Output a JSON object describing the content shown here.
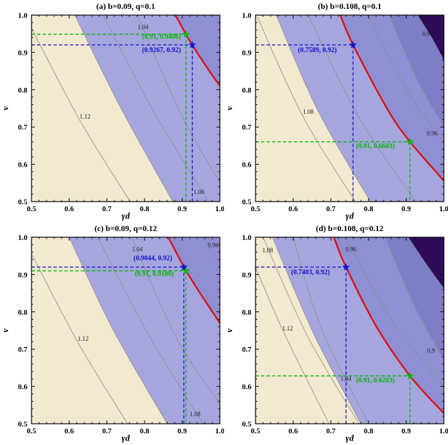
{
  "colors": {
    "cream": "#f3e8d0",
    "band1": "#a6a6df",
    "band2": "#8f8fd4",
    "band3": "#7d7dc8",
    "corner": "#2d0b59",
    "red": "#dd1010",
    "blue": "#1212cc",
    "green": "#00b800",
    "gray": "#8a8a8a",
    "frame": "#000000"
  },
  "chart_data": [
    {
      "type": "heatmap",
      "subtype": "filled-contour",
      "panel_id": "a",
      "title": "(a) b=0.09, q=0.1",
      "xlabel": "γd",
      "ylabel": "ν",
      "xlim": [
        0.5,
        1.0
      ],
      "ylim": [
        0.5,
        1.0
      ],
      "xticks": [
        "0.5",
        "0.6",
        "0.7",
        "0.8",
        "0.9",
        "1.0"
      ],
      "yticks": [
        "0.5",
        "0.6",
        "0.7",
        "0.8",
        "0.9",
        "1.0"
      ],
      "bands": [
        {
          "color": "#f3e8d0",
          "boundary": null
        },
        {
          "color": "#a6a6df",
          "boundary": [
            [
              0.615,
              1.0
            ],
            [
              0.735,
              0.755
            ],
            [
              0.875,
              0.5
            ]
          ]
        },
        {
          "color": "#8f8fd4",
          "boundary": "red"
        }
      ],
      "red_curve": [
        [
          0.882,
          1.0
        ],
        [
          0.91,
          0.9486
        ],
        [
          0.9267,
          0.92
        ],
        [
          0.962,
          0.865
        ],
        [
          1.0,
          0.81
        ]
      ],
      "contour_lines": [
        {
          "points": [
            [
              0.615,
              1.0
            ],
            [
              0.735,
              0.755
            ],
            [
              0.875,
              0.5
            ]
          ]
        },
        {
          "points": [
            [
              0.5,
              0.965
            ],
            [
              0.63,
              0.715
            ],
            [
              0.762,
              0.5
            ]
          ],
          "label": "1.12",
          "label_pos": [
            0.642,
            0.722
          ]
        },
        {
          "points": [
            [
              0.69,
              1.0
            ],
            [
              0.825,
              0.74
            ],
            [
              0.97,
              0.5
            ]
          ],
          "label": "1.08",
          "label_pos": [
            0.944,
            0.52
          ]
        },
        {
          "points": [
            [
              0.78,
              1.0
            ],
            [
              0.9,
              0.728
            ],
            [
              1.0,
              0.552
            ]
          ],
          "label": "1.04",
          "label_pos": [
            0.796,
            0.962
          ]
        }
      ],
      "blue_marker": {
        "x": 0.9267,
        "y": 0.92,
        "label": "(0.9267, 0.92)",
        "label_pos": [
          0.845,
          0.901
        ]
      },
      "green_marker": {
        "x": 0.91,
        "y": 0.9486,
        "label": "(0.91, 0.9486)",
        "label_pos": [
          0.845,
          0.9365
        ]
      }
    },
    {
      "type": "heatmap",
      "subtype": "filled-contour",
      "panel_id": "b",
      "title": "(b) b=0.108, q=0.1",
      "xlabel": "γd",
      "ylabel": "ν",
      "xlim": [
        0.5,
        1.0
      ],
      "ylim": [
        0.5,
        1.0
      ],
      "xticks": [
        "0.5",
        "0.6",
        "0.7",
        "0.8",
        "0.9",
        "1.0"
      ],
      "yticks": [
        "0.5",
        "0.6",
        "0.7",
        "0.8",
        "0.9",
        "1.0"
      ],
      "bands": [
        {
          "color": "#f3e8d0",
          "boundary": null
        },
        {
          "color": "#a6a6df",
          "boundary": [
            [
              0.555,
              1.0
            ],
            [
              0.665,
              0.745
            ],
            [
              0.805,
              0.5
            ]
          ]
        },
        {
          "color": "#8f8fd4",
          "boundary": "red"
        },
        {
          "color": "#7d7dc8",
          "boundary": [
            [
              0.855,
              1.0
            ],
            [
              0.928,
              0.83
            ],
            [
              1.0,
              0.7
            ]
          ]
        },
        {
          "color": "#2d0b59",
          "boundary": [
            [
              0.93,
              1.0
            ],
            [
              0.97,
              0.935
            ],
            [
              1.0,
              0.878
            ]
          ]
        }
      ],
      "red_curve": [
        [
          0.725,
          1.0
        ],
        [
          0.7589,
          0.92
        ],
        [
          0.85,
          0.748
        ],
        [
          0.91,
          0.6603
        ],
        [
          1.0,
          0.556
        ]
      ],
      "contour_lines": [
        {
          "points": [
            [
              0.555,
              1.0
            ],
            [
              0.665,
              0.745
            ],
            [
              0.805,
              0.5
            ]
          ]
        },
        {
          "points": [
            [
              0.505,
              0.995
            ],
            [
              0.625,
              0.73
            ],
            [
              0.765,
              0.5
            ]
          ],
          "label": "1.08",
          "label_pos": [
            0.64,
            0.735
          ]
        },
        {
          "points": [
            [
              0.64,
              1.0
            ],
            [
              0.772,
              0.73
            ],
            [
              0.925,
              0.5
            ]
          ]
        },
        {
          "points": [
            [
              0.8,
              1.0
            ],
            [
              0.895,
              0.81
            ],
            [
              1.0,
              0.655
            ]
          ],
          "label": "0.96",
          "label_pos": [
            0.969,
            0.677
          ]
        },
        {
          "points": [
            [
              0.855,
              1.0
            ],
            [
              0.928,
              0.83
            ],
            [
              1.0,
              0.7
            ]
          ]
        },
        {
          "points": [
            [
              0.93,
              1.0
            ],
            [
              0.97,
              0.935
            ],
            [
              1.0,
              0.878
            ]
          ],
          "label": "0.9",
          "label_pos": [
            0.953,
            0.944
          ]
        }
      ],
      "blue_marker": {
        "x": 0.7589,
        "y": 0.92,
        "label": "(0.7589, 0.92)",
        "label_pos": [
          0.664,
          0.901
        ]
      },
      "green_marker": {
        "x": 0.91,
        "y": 0.6603,
        "label": "(0.91, 0.6603)",
        "label_pos": [
          0.818,
          0.6435
        ]
      }
    },
    {
      "type": "heatmap",
      "subtype": "filled-contour",
      "panel_id": "c",
      "title": "(c) b=0.09, q=0.12",
      "xlabel": "γd",
      "ylabel": "ν",
      "xlim": [
        0.5,
        1.0
      ],
      "ylim": [
        0.5,
        1.0
      ],
      "xticks": [
        "0.5",
        "0.6",
        "0.7",
        "0.8",
        "0.9",
        "1.0"
      ],
      "yticks": [
        "0.5",
        "0.6",
        "0.7",
        "0.8",
        "0.9",
        "1.0"
      ],
      "bands": [
        {
          "color": "#f3e8d0",
          "boundary": null
        },
        {
          "color": "#a6a6df",
          "boundary": [
            [
              0.6,
              1.0
            ],
            [
              0.715,
              0.755
            ],
            [
              0.86,
              0.5
            ]
          ]
        },
        {
          "color": "#8f8fd4",
          "boundary": "red"
        }
      ],
      "red_curve": [
        [
          0.863,
          1.0
        ],
        [
          0.9044,
          0.92
        ],
        [
          0.91,
          0.91
        ],
        [
          0.952,
          0.843
        ],
        [
          1.0,
          0.77
        ]
      ],
      "contour_lines": [
        {
          "points": [
            [
              0.6,
              1.0
            ],
            [
              0.715,
              0.755
            ],
            [
              0.86,
              0.5
            ]
          ]
        },
        {
          "points": [
            [
              0.5,
              0.955
            ],
            [
              0.625,
              0.715
            ],
            [
              0.755,
              0.5
            ]
          ],
          "label": "1.12",
          "label_pos": [
            0.637,
            0.722
          ]
        },
        {
          "points": [
            [
              0.675,
              1.0
            ],
            [
              0.81,
              0.74
            ],
            [
              0.955,
              0.5
            ]
          ],
          "label": "1.08",
          "label_pos": [
            0.934,
            0.52
          ]
        },
        {
          "points": [
            [
              0.765,
              1.0
            ],
            [
              0.885,
              0.73
            ],
            [
              1.0,
              0.553
            ]
          ],
          "label": "1.04",
          "label_pos": [
            0.781,
            0.962
          ]
        },
        {
          "points": [
            [
              0.955,
              1.0
            ],
            [
              0.978,
              0.965
            ],
            [
              1.0,
              0.932
            ]
          ],
          "label": "0.96",
          "label_pos": [
            0.982,
            0.973
          ]
        }
      ],
      "blue_marker": {
        "x": 0.9044,
        "y": 0.92,
        "label": "(0.9044, 0.92)",
        "label_pos": [
          0.822,
          0.9385
        ]
      },
      "green_marker": {
        "x": 0.91,
        "y": 0.91,
        "label": "(0.91, 0.9100)",
        "label_pos": [
          0.826,
          0.8965
        ]
      }
    },
    {
      "type": "heatmap",
      "subtype": "filled-contour",
      "panel_id": "d",
      "title": "(d) b=0.108, q=0.12",
      "xlabel": "γd",
      "ylabel": "ν",
      "xlim": [
        0.5,
        1.0
      ],
      "ylim": [
        0.5,
        1.0
      ],
      "xticks": [
        "0.5",
        "0.6",
        "0.7",
        "0.8",
        "0.9",
        "1.0"
      ],
      "yticks": [
        "0.5",
        "0.6",
        "0.7",
        "0.8",
        "0.9",
        "1.0"
      ],
      "bands": [
        {
          "color": "#f3e8d0",
          "boundary": null
        },
        {
          "color": "#a6a6df",
          "boundary": [
            [
              0.545,
              1.0
            ],
            [
              0.655,
              0.74
            ],
            [
              0.78,
              0.5
            ]
          ]
        },
        {
          "color": "#8f8fd4",
          "boundary": "red"
        },
        {
          "color": "#7d7dc8",
          "boundary": [
            [
              0.845,
              1.0
            ],
            [
              0.92,
              0.82
            ],
            [
              1.0,
              0.672
            ]
          ]
        },
        {
          "color": "#2d0b59",
          "boundary": [
            [
              0.905,
              1.0
            ],
            [
              0.953,
              0.928
            ],
            [
              1.0,
              0.862
            ]
          ]
        }
      ],
      "red_curve": [
        [
          0.708,
          1.0
        ],
        [
          0.7403,
          0.92
        ],
        [
          0.82,
          0.762
        ],
        [
          0.91,
          0.6283
        ],
        [
          1.0,
          0.528
        ]
      ],
      "contour_lines": [
        {
          "points": [
            [
              0.545,
              1.0
            ],
            [
              0.655,
              0.74
            ],
            [
              0.78,
              0.5
            ]
          ]
        },
        {
          "points": [
            [
              0.5,
              0.92
            ],
            [
              0.575,
              0.745
            ],
            [
              0.695,
              0.5
            ]
          ],
          "label": "1.12",
          "label_pos": [
            0.585,
            0.75
          ]
        },
        {
          "points": [
            [
              0.52,
              1.0
            ],
            [
              0.638,
              0.735
            ],
            [
              0.775,
              0.5
            ]
          ],
          "label": "1.08",
          "label_pos": [
            0.532,
            0.96
          ]
        },
        {
          "points": [
            [
              0.6,
              1.0
            ],
            [
              0.675,
              0.755
            ],
            [
              0.8,
              0.5
            ]
          ],
          "label": "1.04",
          "label_pos": [
            0.74,
            0.615
          ]
        },
        {
          "points": [
            [
              0.74,
              1.0
            ],
            [
              0.86,
              0.78
            ],
            [
              1.0,
              0.6
            ]
          ],
          "label": "0.96",
          "label_pos": [
            0.753,
            0.962
          ]
        },
        {
          "points": [
            [
              0.845,
              1.0
            ],
            [
              0.92,
              0.82
            ],
            [
              1.0,
              0.672
            ]
          ],
          "label": "0.9",
          "label_pos": [
            0.966,
            0.69
          ]
        },
        {
          "points": [
            [
              0.905,
              1.0
            ],
            [
              0.953,
              0.928
            ],
            [
              1.0,
              0.862
            ]
          ]
        }
      ],
      "blue_marker": {
        "x": 0.7403,
        "y": 0.92,
        "label": "(0.7403, 0.92)",
        "label_pos": [
          0.646,
          0.901
        ]
      },
      "green_marker": {
        "x": 0.91,
        "y": 0.6283,
        "label": "(0.91, 0.6283)",
        "label_pos": [
          0.818,
          0.6115
        ]
      }
    }
  ]
}
